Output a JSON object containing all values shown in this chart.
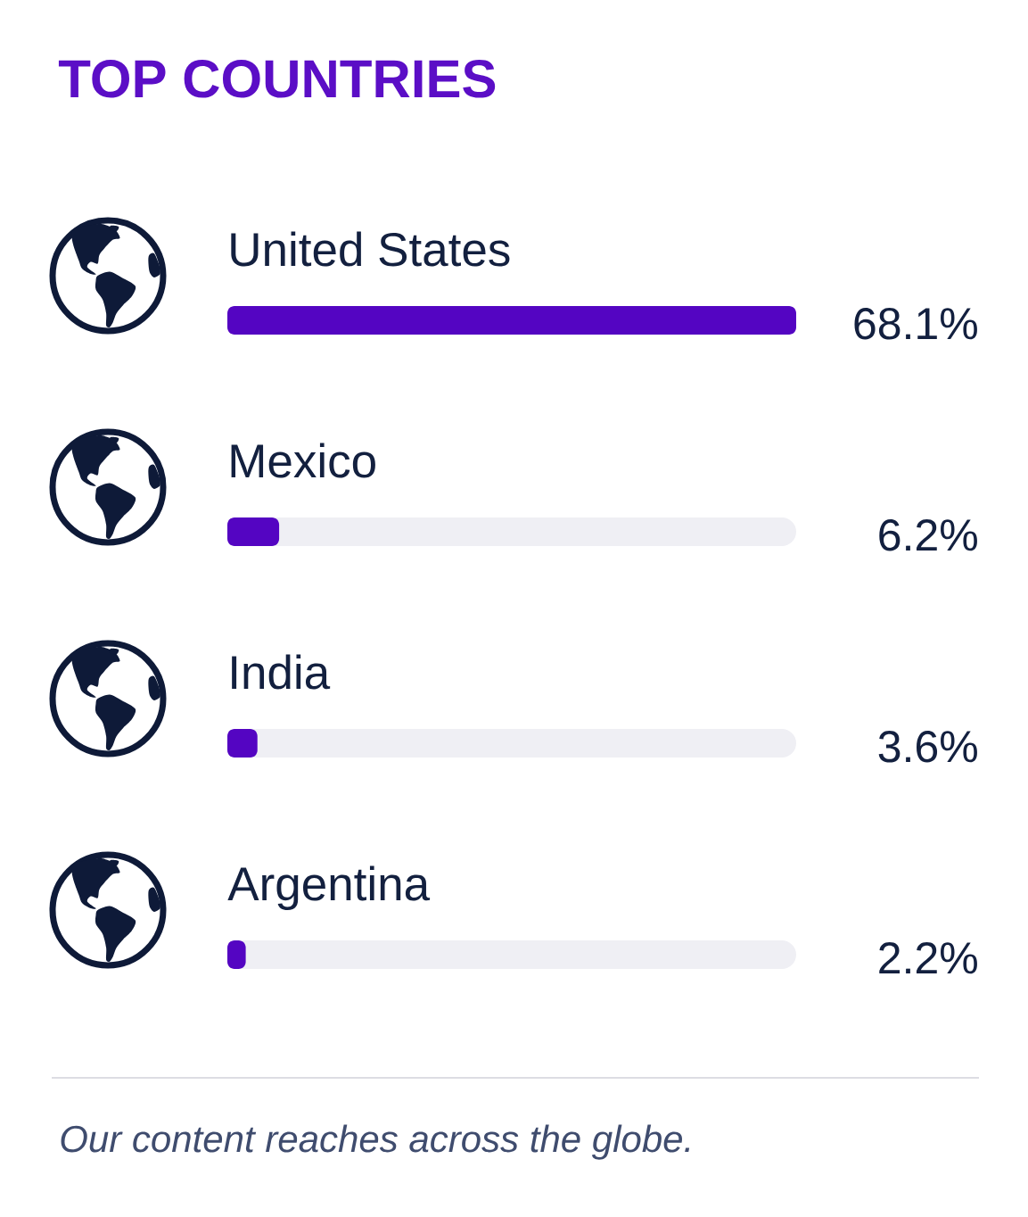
{
  "chart_data": {
    "type": "bar",
    "orientation": "horizontal",
    "title": "TOP COUNTRIES",
    "categories": [
      "United States",
      "Mexico",
      "India",
      "Argentina"
    ],
    "values": [
      68.1,
      6.2,
      3.6,
      2.2
    ],
    "color": "#5405c2",
    "value_labels": [
      "68.1%",
      "6.2%",
      "3.6%",
      "2.2%"
    ],
    "xlim": [
      0,
      68.1
    ],
    "tick_labels": "y",
    "annotations": [
      "Our content reaches across the globe."
    ]
  }
}
